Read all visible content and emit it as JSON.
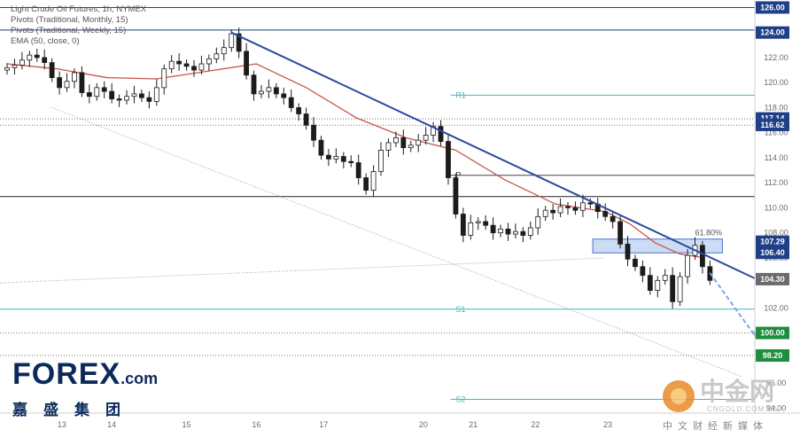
{
  "legend": {
    "line1": "Light Crude Oil Futures, 1h, NYMEX",
    "line2": "Pivots (Traditional, Monthly, 15)",
    "line3": "Pivots (Traditional, Weekly, 15)",
    "line4": "EMA (50, close, 0)"
  },
  "logo": {
    "main": "FOREX",
    "suffix": ".com",
    "sub": "嘉盛集团"
  },
  "watermark": {
    "main": "中金网",
    "url": "CNGOLD.COM.CN",
    "sub": "中文财经新媒体"
  },
  "colors": {
    "trendline": "#2b4ba0",
    "ema": "#c9544d",
    "candle": "#1c1c1c",
    "pivot_teal": "#4fb3bf",
    "zone_fill": "#cddcf5",
    "zone_edge": "#4a6fd6",
    "forecast_arrow": "#7aa7e8",
    "badge_blue": "#1f3f86",
    "badge_green": "#1e8e3e",
    "badge_gray": "#6b6b6b"
  },
  "chart_data": {
    "type": "line",
    "title": "Light Crude Oil Futures, 1h, NYMEX",
    "xlabel": "",
    "ylabel": "",
    "ylim": [
      93.6,
      126.6
    ],
    "grid": false,
    "x_ticks": [
      "13",
      "14",
      "15",
      "16",
      "17",
      "20",
      "21",
      "22",
      "23"
    ],
    "y_ticks": [
      94,
      96,
      98,
      100,
      102,
      104,
      106,
      108,
      110,
      112,
      114,
      116,
      118,
      120,
      122,
      124,
      126
    ],
    "price_series": {
      "name": "Light Crude Oil Futures, 1h, NYMEX",
      "x": [
        0,
        3,
        6,
        9,
        12,
        15,
        18,
        21,
        24,
        27,
        30,
        33,
        36,
        39,
        42,
        45,
        48,
        51,
        54,
        57,
        60,
        63,
        66,
        69,
        72,
        75,
        78,
        81,
        84,
        87,
        90,
        93,
        96,
        99,
        102,
        105,
        108,
        111,
        114,
        117,
        120,
        123,
        126,
        129,
        132,
        135,
        138,
        141,
        144,
        147,
        150,
        153,
        156,
        159,
        162,
        165,
        168,
        171,
        174,
        177,
        180,
        183,
        186,
        189,
        192,
        195,
        198,
        201,
        204,
        207,
        210,
        213,
        216,
        219,
        222,
        225,
        228,
        231,
        234,
        237,
        240,
        243,
        246,
        249,
        252,
        255,
        258
      ],
      "values": [
        121.2,
        121.4,
        121.8,
        122.2,
        122.0,
        121.6,
        120.4,
        119.6,
        120.1,
        120.8,
        119.2,
        118.9,
        119.6,
        119.3,
        118.7,
        118.6,
        118.9,
        119.1,
        118.8,
        118.5,
        119.6,
        121.1,
        121.7,
        121.5,
        121.3,
        121.0,
        121.5,
        121.9,
        122.3,
        122.8,
        123.9,
        122.5,
        120.6,
        119.1,
        119.3,
        119.6,
        119.1,
        118.8,
        118.0,
        117.5,
        116.6,
        115.4,
        114.2,
        113.9,
        114.1,
        113.7,
        113.6,
        112.4,
        111.4,
        112.9,
        114.6,
        115.2,
        115.6,
        114.8,
        115.0,
        115.4,
        115.8,
        116.5,
        115.3,
        112.4,
        109.5,
        107.8,
        108.8,
        108.9,
        108.6,
        108.0,
        108.3,
        107.9,
        108.1,
        107.8,
        108.4,
        109.3,
        109.8,
        109.6,
        110.1,
        110.0,
        109.8,
        110.4,
        110.3,
        109.7,
        109.3,
        108.9,
        107.1,
        105.9,
        105.3,
        104.6,
        103.4
      ]
    },
    "price_series_tail": {
      "x": [
        261,
        264,
        267,
        270,
        273,
        276,
        279,
        282
      ],
      "values": [
        104.2,
        104.6,
        102.5,
        104.5,
        106.2,
        107.0,
        105.3,
        104.2
      ]
    },
    "ema_series": {
      "name": "EMA (50, close, 0)",
      "x": [
        0,
        20,
        40,
        60,
        80,
        100,
        120,
        140,
        160,
        180,
        200,
        220,
        240,
        250,
        260,
        270,
        280
      ],
      "values": [
        121.5,
        121.1,
        120.4,
        120.3,
        120.9,
        121.5,
        119.6,
        117.2,
        115.6,
        114.6,
        112.2,
        110.3,
        109.7,
        108.7,
        107.2,
        106.3,
        106.0
      ]
    },
    "trendline": {
      "x": [
        90,
        290
      ],
      "values": [
        124.0,
        105.3
      ]
    },
    "dotted_channel": {
      "x": [
        18,
        295
      ],
      "values": [
        118.0,
        96.5
      ]
    },
    "horizontal_levels": [
      {
        "label": "R1",
        "value": 119.0,
        "style": "teal"
      },
      {
        "label": "P",
        "value": 112.6,
        "style": "dark"
      },
      {
        "label": "S1",
        "value": 101.9,
        "style": "teal"
      },
      {
        "label": "S2",
        "value": 94.7,
        "style": "teal"
      },
      {
        "label": "",
        "value": 124.2,
        "style": "blue-line"
      },
      {
        "label": "",
        "value": 126.0,
        "style": "blue-line"
      },
      {
        "label": "",
        "value": 117.1,
        "style": "dotted"
      },
      {
        "label": "",
        "value": 116.6,
        "style": "dotted"
      },
      {
        "label": "",
        "value": 110.9,
        "style": "black"
      },
      {
        "label": "",
        "value": 100.0,
        "style": "dotted"
      },
      {
        "label": "",
        "value": 98.2,
        "style": "dotted"
      }
    ],
    "fib_zone": {
      "label": "61.80%",
      "top": 107.5,
      "bottom": 106.4
    },
    "price_badges": [
      {
        "value": "126.00",
        "kind": "blue"
      },
      {
        "value": "124.00",
        "kind": "blue"
      },
      {
        "value": "117.14",
        "kind": "blue"
      },
      {
        "value": "116.62",
        "kind": "blue"
      },
      {
        "value": "107.29",
        "kind": "blue"
      },
      {
        "value": "106.40",
        "kind": "blue"
      },
      {
        "value": "104.30",
        "kind": "gray"
      },
      {
        "value": "100.00",
        "kind": "green"
      },
      {
        "value": "98.20",
        "kind": "green"
      }
    ],
    "forecast_arrow": {
      "x": [
        282,
        292,
        300
      ],
      "values": [
        104.8,
        102.0,
        99.8
      ]
    }
  }
}
